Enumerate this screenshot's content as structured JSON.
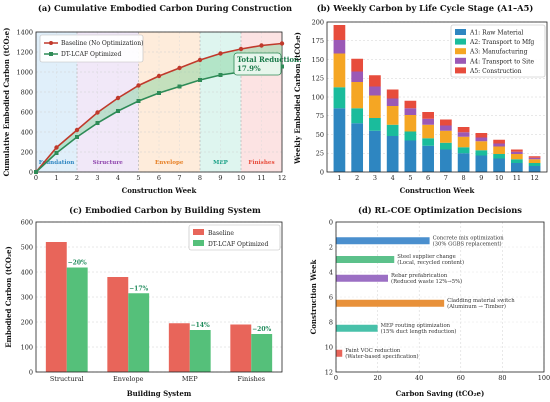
{
  "colors": {
    "baseline": "#c0392b",
    "optimized": "#2e8b57",
    "bar_baseline": "#e8655a",
    "bar_optimized": "#55c07a",
    "A1": "#2e86c1",
    "A2": "#1abc9c",
    "A3": "#f5a623",
    "A4": "#9b59b6",
    "A5": "#e74c3c"
  },
  "chart_data": [
    {
      "type": "line",
      "title": "(a) Cumulative Embodied Carbon During Construction",
      "xlabel": "Construction Week",
      "ylabel": "Cumulative Embodied Carbon (tCO₂e)",
      "xlim": [
        0,
        12
      ],
      "ylim": [
        0,
        1400
      ],
      "xticks": [
        0,
        1,
        2,
        3,
        4,
        5,
        6,
        7,
        8,
        9,
        10,
        11,
        12
      ],
      "yticks": [
        0,
        200,
        400,
        600,
        800,
        1000,
        1200,
        1400
      ],
      "x": [
        0,
        1,
        2,
        3,
        4,
        5,
        6,
        7,
        8,
        9,
        10,
        11,
        12
      ],
      "series": [
        {
          "name": "Baseline (No Optimization)",
          "values": [
            0,
            245,
            420,
            595,
            740,
            865,
            960,
            1040,
            1120,
            1185,
            1230,
            1265,
            1285
          ]
        },
        {
          "name": "DT-LCAF Optimized",
          "values": [
            0,
            190,
            350,
            490,
            610,
            710,
            790,
            855,
            920,
            970,
            1000,
            1030,
            1055
          ]
        }
      ],
      "phases": [
        {
          "label": "Foundation",
          "from": 0,
          "to": 2,
          "color": "#d6e9f8"
        },
        {
          "label": "Structure",
          "from": 2,
          "to": 5,
          "color": "#ece0f5"
        },
        {
          "label": "Envelope",
          "from": 5,
          "to": 8,
          "color": "#fde6cf"
        },
        {
          "label": "MEP",
          "from": 8,
          "to": 10,
          "color": "#d3f1ea"
        },
        {
          "label": "Finishes",
          "from": 10,
          "to": 12,
          "color": "#fbdada"
        }
      ],
      "phase_text_colors": [
        "#2e86c1",
        "#8e44ad",
        "#e67e22",
        "#16a085",
        "#e74c3c"
      ],
      "annotation": {
        "line1": "Total Reduction:",
        "line2": "17.9%"
      },
      "legend": "top-left",
      "grid": true
    },
    {
      "type": "bar",
      "stacked": true,
      "title": "(b) Weekly Carbon by Life Cycle Stage (A1–A5)",
      "xlabel": "Construction Week",
      "ylabel": "Weekly Embodied Carbon (tCO₂e)",
      "categories": [
        "1",
        "2",
        "3",
        "4",
        "5",
        "6",
        "7",
        "8",
        "9",
        "10",
        "11",
        "12"
      ],
      "ylim": [
        0,
        200
      ],
      "yticks": [
        0,
        25,
        50,
        75,
        100,
        125,
        150,
        175,
        200
      ],
      "series": [
        {
          "name": "A1: Raw Material",
          "values": [
            85,
            65,
            55,
            48,
            42,
            35,
            30,
            25,
            22,
            18,
            12,
            8
          ]
        },
        {
          "name": "A2: Transport to Mfg",
          "values": [
            28,
            20,
            17,
            15,
            12,
            10,
            9,
            8,
            7,
            6,
            5,
            4
          ]
        },
        {
          "name": "A3: Manufacturing",
          "values": [
            45,
            35,
            30,
            25,
            22,
            18,
            16,
            14,
            12,
            10,
            7,
            5
          ]
        },
        {
          "name": "A4: Transport to Site",
          "values": [
            18,
            14,
            12,
            10,
            9,
            8,
            7,
            6,
            5,
            4,
            3,
            2
          ]
        },
        {
          "name": "A5: Construction",
          "values": [
            20,
            17,
            15,
            12,
            10,
            9,
            8,
            7,
            6,
            5,
            3,
            2
          ]
        }
      ],
      "legend": "top-right",
      "grid": true
    },
    {
      "type": "bar",
      "title": "(c) Embodied Carbon by Building System",
      "xlabel": "Building System",
      "ylabel": "Embodied Carbon (tCO₂e)",
      "categories": [
        "Structural",
        "Envelope",
        "MEP",
        "Finishes"
      ],
      "ylim": [
        0,
        600
      ],
      "yticks": [
        0,
        100,
        200,
        300,
        400,
        500,
        600
      ],
      "series": [
        {
          "name": "Baseline",
          "values": [
            520,
            380,
            195,
            190
          ]
        },
        {
          "name": "DT-LCAF Optimized",
          "values": [
            418,
            315,
            168,
            152
          ]
        }
      ],
      "reductions": [
        "−20%",
        "−17%",
        "−14%",
        "−20%"
      ],
      "legend": "top-right",
      "grid": true
    },
    {
      "type": "bar",
      "orientation": "horizontal",
      "title": "(d) RL-COE Optimization Decisions",
      "xlabel": "Carbon Saving (tCO₂e)",
      "ylabel": "Construction Week",
      "xlim": [
        0,
        100
      ],
      "ylim": [
        0,
        12
      ],
      "xticks": [
        0,
        20,
        40,
        60,
        80,
        100
      ],
      "yticks": [
        0,
        2,
        4,
        6,
        8,
        10,
        12
      ],
      "bars": [
        {
          "week": 1.5,
          "value": 45,
          "color": "#4a8fce",
          "line1": "Concrete mix optimization",
          "line2": "(30% GGBS replacement)"
        },
        {
          "week": 3,
          "value": 28,
          "color": "#5cc18b",
          "line1": "Steel supplier change",
          "line2": "(Local, recycled content)"
        },
        {
          "week": 4.5,
          "value": 25,
          "color": "#9b6fc4",
          "line1": "Rebar prefabrication",
          "line2": "(Reduced waste 12%→5%)"
        },
        {
          "week": 6.5,
          "value": 52,
          "color": "#e8913a",
          "line1": "Cladding material switch",
          "line2": "(Aluminum → Timber)"
        },
        {
          "week": 8.5,
          "value": 20,
          "color": "#48c1aa",
          "line1": "MEP routing optimization",
          "line2": "(15% duct length reduction)"
        },
        {
          "week": 10.5,
          "value": 3,
          "color": "#e8655a",
          "line1": "Paint VOC reduction",
          "line2": "(Water-based specification)"
        }
      ],
      "grid": true
    }
  ]
}
